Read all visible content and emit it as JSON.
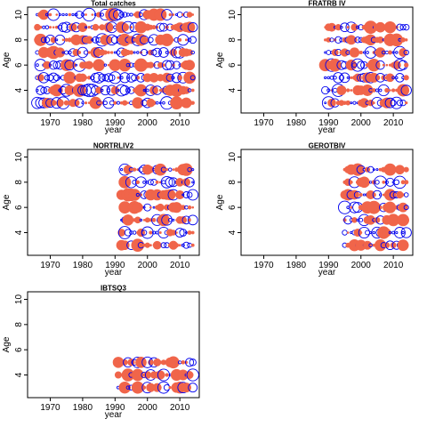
{
  "colors": {
    "positive": "#f0654a",
    "negative": "#0000ee",
    "frame": "#000000"
  },
  "chart_data": [
    {
      "type": "scatter",
      "subtype": "bubble",
      "title": "Total catches",
      "xlabel": "year",
      "ylabel": "Age",
      "xlim": [
        1963,
        2016
      ],
      "ylim": [
        2.2,
        10.6
      ],
      "xticks": [
        1970,
        1980,
        1990,
        2000,
        2010
      ],
      "yticks": [
        4,
        6,
        8,
        10
      ],
      "years": [
        1966,
        2014
      ],
      "ages": [
        3,
        4,
        5,
        6,
        7,
        8,
        9,
        10
      ]
    },
    {
      "type": "scatter",
      "subtype": "bubble",
      "title": "FRATRB IV",
      "xlabel": "year",
      "ylabel": "Age",
      "xlim": [
        1963,
        2016
      ],
      "ylim": [
        2.2,
        10.6
      ],
      "xticks": [
        1970,
        1980,
        1990,
        2000,
        2010
      ],
      "yticks": [
        4,
        6,
        8,
        10
      ],
      "years": [
        1989,
        2014
      ],
      "ages": [
        3,
        4,
        5,
        6,
        7,
        8,
        9
      ]
    },
    {
      "type": "scatter",
      "subtype": "bubble",
      "title": "NORTRLIV2",
      "xlabel": "year",
      "ylabel": "Age",
      "xlim": [
        1963,
        2016
      ],
      "ylim": [
        2.2,
        10.6
      ],
      "xticks": [
        1970,
        1980,
        1990,
        2000,
        2010
      ],
      "yticks": [
        4,
        6,
        8,
        10
      ],
      "years": [
        1992,
        2014
      ],
      "ages": [
        3,
        4,
        5,
        6,
        7,
        8,
        9
      ]
    },
    {
      "type": "scatter",
      "subtype": "bubble",
      "title": "GEROTBIV",
      "xlabel": "year",
      "ylabel": "Age",
      "xlim": [
        1963,
        2016
      ],
      "ylim": [
        2.2,
        10.6
      ],
      "xticks": [
        1970,
        1980,
        1990,
        2000,
        2010
      ],
      "yticks": [
        4,
        6,
        8,
        10
      ],
      "years": [
        1995,
        2014
      ],
      "ages": [
        3,
        4,
        5,
        6,
        7,
        8,
        9
      ]
    },
    {
      "type": "scatter",
      "subtype": "bubble",
      "title": "IBTSQ3",
      "xlabel": "year",
      "ylabel": "Age",
      "xlim": [
        1963,
        2016
      ],
      "ylim": [
        2.2,
        10.6
      ],
      "xticks": [
        1970,
        1980,
        1990,
        2000,
        2010
      ],
      "yticks": [
        4,
        6,
        8,
        10
      ],
      "years": [
        1991,
        2014
      ],
      "ages": [
        3,
        4,
        5
      ]
    }
  ]
}
